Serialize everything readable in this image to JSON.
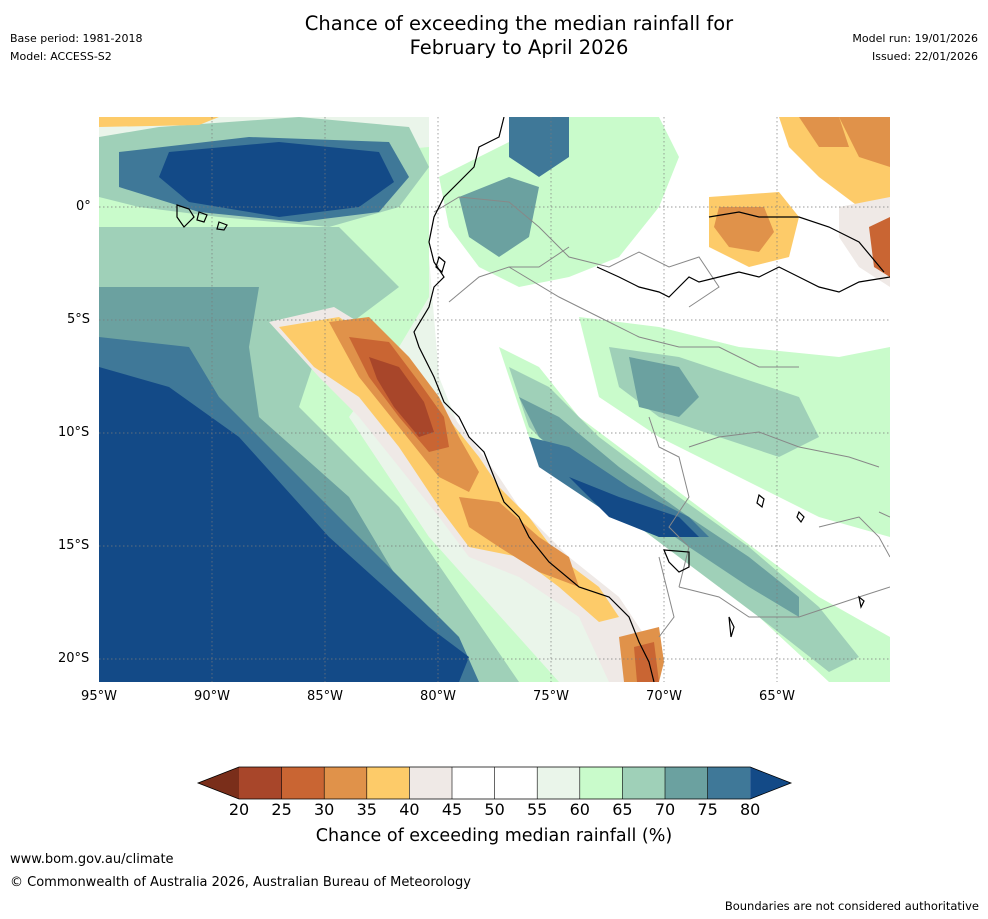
{
  "title": {
    "line1": "Chance of exceeding the median rainfall for",
    "line2": "February to April 2026"
  },
  "meta": {
    "base_period": "Base period: 1981-2018",
    "model": "Model: ACCESS-S2",
    "model_run": "Model run: 19/01/2026",
    "issued": "Issued: 22/01/2026"
  },
  "map": {
    "latitude_labels": [
      "0°",
      "5°S",
      "10°S",
      "15°S",
      "20°S"
    ],
    "longitude_labels": [
      "95°W",
      "90°W",
      "85°W",
      "80°W",
      "75°W",
      "70°W",
      "65°W"
    ]
  },
  "legend": {
    "title": "Chance of exceeding median rainfall (%)",
    "ticks": [
      "20",
      "25",
      "30",
      "35",
      "40",
      "45",
      "50",
      "55",
      "60",
      "65",
      "70",
      "75",
      "80"
    ],
    "colors": {
      "lt20": "#7a2e1a",
      "b20_25": "#a8462a",
      "b25_30": "#c96533",
      "b30_35": "#e0924a",
      "b35_40": "#fdcb69",
      "b40_45": "#efe9e6",
      "b45_50": "#ffffff",
      "b50_55": "#ffffff",
      "b55_60": "#eaf5ea",
      "b60_65": "#c9fbcb",
      "b65_70": "#9fd0b8",
      "b70_75": "#6ba1a0",
      "b75_80": "#3f7898",
      "gt80": "#134a87"
    }
  },
  "footer": {
    "url": "www.bom.gov.au/climate",
    "copyright": "© Commonwealth of Australia 2026, Australian Bureau of Meteorology",
    "note": "Boundaries are not considered authoritative"
  }
}
